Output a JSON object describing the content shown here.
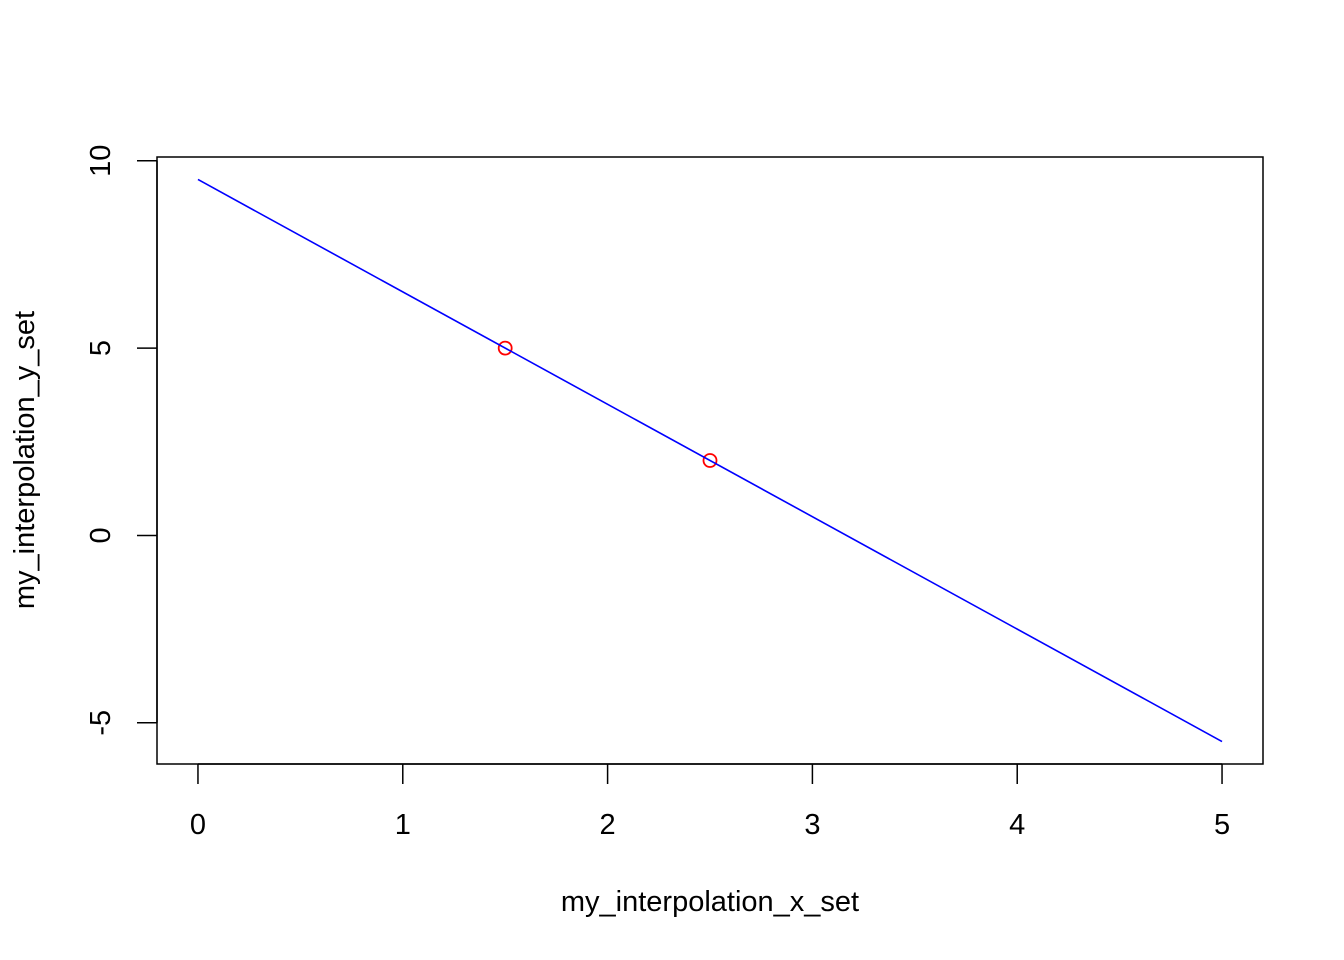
{
  "chart_data": {
    "type": "line",
    "title": "",
    "xlabel": "my_interpolation_x_set",
    "ylabel": "my_interpolation_y_set",
    "xlim": [
      -0.2,
      5.2
    ],
    "ylim": [
      -6.1,
      10.1
    ],
    "x_ticks": [
      0,
      1,
      2,
      3,
      4,
      5
    ],
    "y_ticks": [
      -5,
      0,
      5,
      10
    ],
    "grid": false,
    "series": [
      {
        "kind": "points",
        "marker": "open-circle",
        "color": "#ff0000",
        "x": [
          1.5,
          2.5
        ],
        "y": [
          5,
          2
        ]
      },
      {
        "kind": "line",
        "color": "#0000ff",
        "x": [
          0,
          5
        ],
        "y": [
          9.5,
          -5.5
        ]
      }
    ]
  }
}
